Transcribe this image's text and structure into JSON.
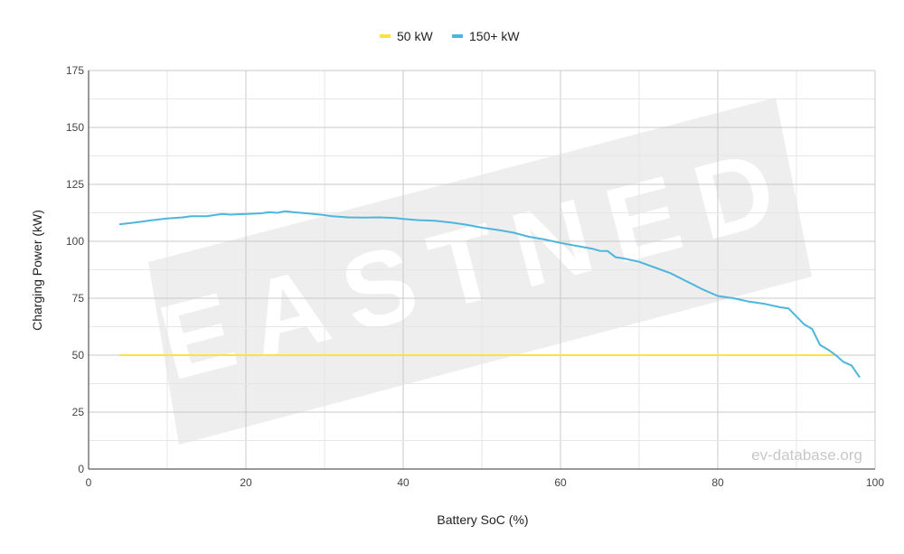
{
  "chart_data": {
    "type": "line",
    "title": "",
    "xlabel": "Battery SoC (%)",
    "ylabel": "Charging Power (kW)",
    "xlim": [
      0,
      100
    ],
    "ylim": [
      0,
      175
    ],
    "x_ticks": [
      0,
      20,
      40,
      60,
      80,
      100
    ],
    "y_ticks": [
      0,
      25,
      50,
      75,
      100,
      125,
      150,
      175
    ],
    "grid": true,
    "legend_position": "top-center",
    "watermark_logo": "EASTNED",
    "watermark_credit": "ev-database.org",
    "series": [
      {
        "name": "50 kW",
        "color": "#fde13c",
        "points": [
          [
            4,
            50
          ],
          [
            95,
            50
          ]
        ]
      },
      {
        "name": "150+ kW",
        "color": "#4db6dc",
        "points": [
          [
            4,
            107.5
          ],
          [
            6,
            108.3
          ],
          [
            8,
            109.2
          ],
          [
            10,
            110
          ],
          [
            12,
            110.5
          ],
          [
            13,
            111
          ],
          [
            15,
            111
          ],
          [
            17,
            112
          ],
          [
            18,
            111.7
          ],
          [
            20,
            112
          ],
          [
            22,
            112.3
          ],
          [
            23,
            112.8
          ],
          [
            24,
            112.5
          ],
          [
            25,
            113.2
          ],
          [
            26,
            112.8
          ],
          [
            28,
            112.2
          ],
          [
            30,
            111.5
          ],
          [
            31,
            111
          ],
          [
            33,
            110.5
          ],
          [
            35,
            110.4
          ],
          [
            37,
            110.5
          ],
          [
            39,
            110.2
          ],
          [
            40,
            109.8
          ],
          [
            42,
            109.3
          ],
          [
            44,
            109
          ],
          [
            46,
            108.3
          ],
          [
            48,
            107.3
          ],
          [
            50,
            106
          ],
          [
            52,
            105
          ],
          [
            54,
            103.8
          ],
          [
            56,
            102
          ],
          [
            58,
            100.8
          ],
          [
            60,
            99.3
          ],
          [
            62,
            98
          ],
          [
            64,
            96.8
          ],
          [
            65,
            95.8
          ],
          [
            66,
            95.7
          ],
          [
            67,
            93
          ],
          [
            68,
            92.5
          ],
          [
            70,
            91
          ],
          [
            72,
            88.5
          ],
          [
            74,
            86
          ],
          [
            76,
            82.5
          ],
          [
            78,
            79
          ],
          [
            80,
            76
          ],
          [
            82,
            75
          ],
          [
            84,
            73.5
          ],
          [
            86,
            72.5
          ],
          [
            88,
            71
          ],
          [
            89,
            70.5
          ],
          [
            90,
            67
          ],
          [
            91,
            63.5
          ],
          [
            92,
            61.5
          ],
          [
            93,
            54.5
          ],
          [
            94,
            52.5
          ],
          [
            95,
            50
          ],
          [
            96,
            47
          ],
          [
            97,
            45.5
          ],
          [
            98,
            40.5
          ]
        ]
      }
    ]
  }
}
